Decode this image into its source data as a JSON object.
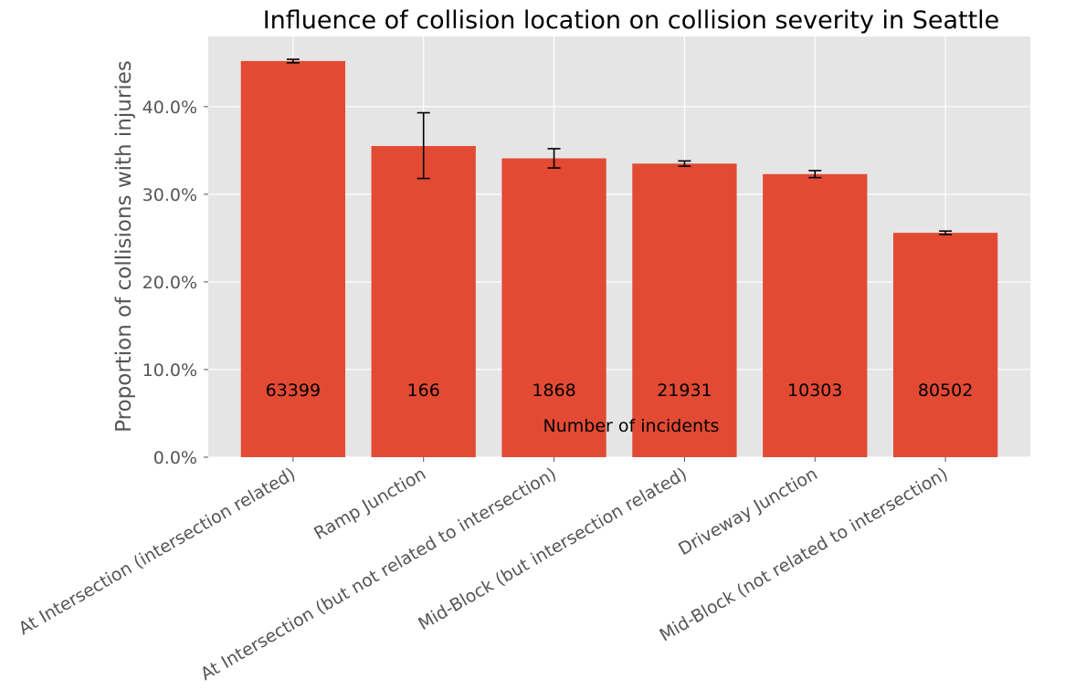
{
  "chart_data": {
    "type": "bar",
    "title": "Influence of collision location on collision severity in Seattle",
    "xlabel": "",
    "ylabel": "Proportion of collisions with injuries",
    "ylim": [
      0,
      0.48
    ],
    "yticks": [
      0.0,
      0.1,
      0.2,
      0.3,
      0.4
    ],
    "ytick_labels": [
      "0.0%",
      "10.0%",
      "20.0%",
      "30.0%",
      "40.0%"
    ],
    "grid": true,
    "categories": [
      "At Intersection (intersection related)",
      "Ramp Junction",
      "At Intersection (but not related to intersection)",
      "Mid-Block (but intersection related)",
      "Driveway Junction",
      "Mid-Block (not related to intersection)"
    ],
    "values": [
      0.452,
      0.355,
      0.341,
      0.335,
      0.323,
      0.256
    ],
    "error_low": [
      0.45,
      0.318,
      0.33,
      0.332,
      0.319,
      0.254
    ],
    "error_high": [
      0.454,
      0.393,
      0.352,
      0.338,
      0.327,
      0.258
    ],
    "counts": [
      "63399",
      "166",
      "1868",
      "21931",
      "10303",
      "80502"
    ],
    "annotation": "Number of incidents",
    "colors": {
      "bar": "#e24a33",
      "plot_background": "#e5e5e5",
      "grid": "#ffffff",
      "errorbar": "#000000"
    }
  }
}
